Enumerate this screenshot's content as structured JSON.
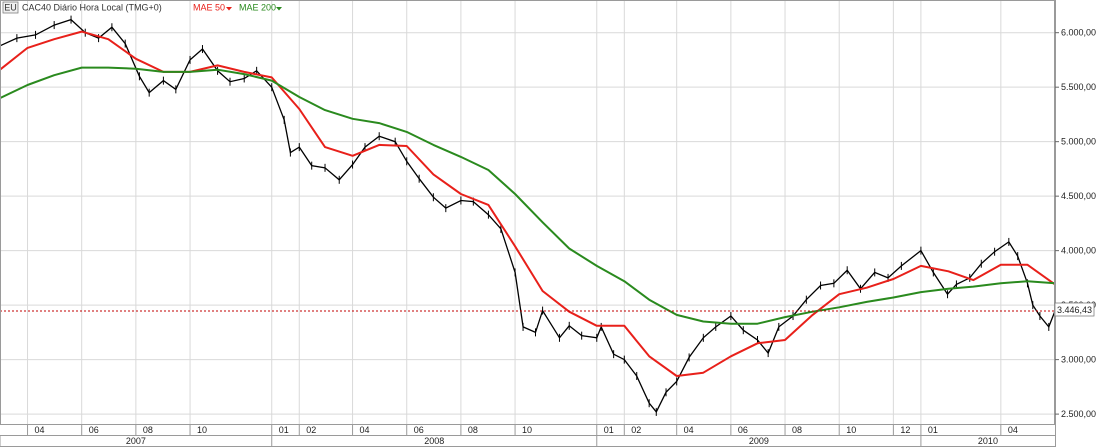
{
  "header": {
    "symbol_badge": "EU",
    "title": "CAC40 Diário Hora Local (TMG+0)",
    "indicators": [
      {
        "label": "MAE 50",
        "color": "#e00000"
      },
      {
        "label": "MAE 200",
        "color": "#2a8a1e"
      }
    ]
  },
  "price_badge": "3.446,43",
  "colors": {
    "price": "#000000",
    "mae50": "#e8201a",
    "mae200": "#2a8a1e",
    "grid": "#d9d9d9",
    "last_price_line": "#c00000",
    "badge_border": "#808080"
  },
  "chart_data": {
    "type": "line",
    "title": "CAC40 Diário Hora Local (TMG+0)",
    "ylim": [
      2400,
      6300
    ],
    "y_ticks": [
      2500,
      3000,
      3500,
      4000,
      4500,
      5000,
      5500,
      6000
    ],
    "y_tick_labels": [
      "2.500,00",
      "3.000,00",
      "3.500,00",
      "4.000,00",
      "4.500,00",
      "5.000,00",
      "5.500,00",
      "6.000,00"
    ],
    "xlim": [
      "2007-03-01",
      "2010-06-01"
    ],
    "x_ticks": [
      {
        "date": "2007-04-01",
        "label": "04"
      },
      {
        "date": "2007-06-01",
        "label": "06"
      },
      {
        "date": "2007-08-01",
        "label": "08"
      },
      {
        "date": "2007-10-01",
        "label": "10"
      },
      {
        "date": "2008-01-01",
        "label": "01"
      },
      {
        "date": "2008-02-01",
        "label": "02"
      },
      {
        "date": "2008-04-01",
        "label": "04"
      },
      {
        "date": "2008-06-01",
        "label": "06"
      },
      {
        "date": "2008-08-01",
        "label": "08"
      },
      {
        "date": "2008-10-01",
        "label": "10"
      },
      {
        "date": "2009-01-01",
        "label": "01"
      },
      {
        "date": "2009-02-01",
        "label": "02"
      },
      {
        "date": "2009-04-01",
        "label": "04"
      },
      {
        "date": "2009-06-01",
        "label": "06"
      },
      {
        "date": "2009-08-01",
        "label": "08"
      },
      {
        "date": "2009-10-01",
        "label": "10"
      },
      {
        "date": "2009-12-01",
        "label": "12"
      },
      {
        "date": "2010-01-01",
        "label": "01"
      },
      {
        "date": "2010-04-01",
        "label": "04"
      }
    ],
    "years": [
      {
        "label": "2007",
        "start": "2007-03-01",
        "end": "2008-01-01"
      },
      {
        "label": "2008",
        "start": "2008-01-01",
        "end": "2009-01-01"
      },
      {
        "label": "2009",
        "start": "2009-01-01",
        "end": "2010-01-01"
      },
      {
        "label": "2010",
        "start": "2010-01-01",
        "end": "2010-06-01"
      }
    ],
    "last_price": 3446.43,
    "series": [
      {
        "name": "CAC40",
        "style": "price",
        "x": [
          "2007-03-01",
          "2007-03-20",
          "2007-04-10",
          "2007-05-01",
          "2007-05-20",
          "2007-06-05",
          "2007-06-20",
          "2007-07-05",
          "2007-07-20",
          "2007-08-05",
          "2007-08-16",
          "2007-09-01",
          "2007-09-15",
          "2007-10-01",
          "2007-10-15",
          "2007-11-01",
          "2007-11-15",
          "2007-12-01",
          "2007-12-15",
          "2008-01-01",
          "2008-01-15",
          "2008-01-22",
          "2008-02-01",
          "2008-02-15",
          "2008-03-01",
          "2008-03-17",
          "2008-04-01",
          "2008-04-15",
          "2008-05-01",
          "2008-05-19",
          "2008-06-01",
          "2008-06-15",
          "2008-07-01",
          "2008-07-15",
          "2008-08-01",
          "2008-08-15",
          "2008-09-01",
          "2008-09-15",
          "2008-10-01",
          "2008-10-10",
          "2008-10-24",
          "2008-11-01",
          "2008-11-20",
          "2008-12-01",
          "2008-12-15",
          "2009-01-01",
          "2009-01-06",
          "2009-01-20",
          "2009-02-01",
          "2009-02-15",
          "2009-03-01",
          "2009-03-09",
          "2009-03-20",
          "2009-04-01",
          "2009-04-15",
          "2009-05-01",
          "2009-05-15",
          "2009-06-01",
          "2009-06-15",
          "2009-07-01",
          "2009-07-13",
          "2009-07-25",
          "2009-08-10",
          "2009-08-25",
          "2009-09-10",
          "2009-09-25",
          "2009-10-10",
          "2009-10-25",
          "2009-11-10",
          "2009-11-25",
          "2009-12-10",
          "2010-01-01",
          "2010-01-15",
          "2010-01-31",
          "2010-02-10",
          "2010-02-25",
          "2010-03-10",
          "2010-03-25",
          "2010-04-10",
          "2010-04-20",
          "2010-05-01",
          "2010-05-07",
          "2010-05-15",
          "2010-05-25",
          "2010-06-01"
        ],
        "values": [
          5880,
          5950,
          5980,
          6070,
          6120,
          6000,
          5950,
          6050,
          5900,
          5600,
          5450,
          5560,
          5480,
          5750,
          5850,
          5650,
          5550,
          5580,
          5650,
          5500,
          5200,
          4900,
          4950,
          4780,
          4760,
          4650,
          4790,
          4950,
          5050,
          5000,
          4820,
          4660,
          4490,
          4390,
          4460,
          4450,
          4330,
          4200,
          3800,
          3300,
          3250,
          3450,
          3200,
          3310,
          3220,
          3200,
          3300,
          3050,
          3000,
          2850,
          2600,
          2520,
          2700,
          2800,
          3020,
          3200,
          3300,
          3400,
          3270,
          3180,
          3060,
          3300,
          3400,
          3550,
          3680,
          3700,
          3820,
          3650,
          3800,
          3750,
          3860,
          4000,
          3800,
          3600,
          3690,
          3750,
          3880,
          3990,
          4080,
          3950,
          3700,
          3500,
          3400,
          3300,
          3446
        ]
      },
      {
        "name": "MAE 50",
        "style": "mae50",
        "x": [
          "2007-03-01",
          "2007-04-01",
          "2007-05-01",
          "2007-06-01",
          "2007-07-01",
          "2007-08-01",
          "2007-09-01",
          "2007-10-01",
          "2007-11-01",
          "2007-12-01",
          "2008-01-01",
          "2008-02-01",
          "2008-03-01",
          "2008-04-01",
          "2008-05-01",
          "2008-06-01",
          "2008-07-01",
          "2008-08-01",
          "2008-09-01",
          "2008-10-01",
          "2008-11-01",
          "2008-12-01",
          "2009-01-01",
          "2009-02-01",
          "2009-03-01",
          "2009-04-01",
          "2009-05-01",
          "2009-06-01",
          "2009-07-01",
          "2009-08-01",
          "2009-09-01",
          "2009-10-01",
          "2009-11-01",
          "2009-12-01",
          "2010-01-01",
          "2010-02-01",
          "2010-03-01",
          "2010-04-01",
          "2010-05-01",
          "2010-06-01"
        ],
        "values": [
          5660,
          5860,
          5940,
          6010,
          5940,
          5760,
          5640,
          5640,
          5700,
          5640,
          5590,
          5300,
          4950,
          4870,
          4970,
          4960,
          4700,
          4520,
          4420,
          4040,
          3630,
          3440,
          3310,
          3310,
          3030,
          2850,
          2880,
          3030,
          3150,
          3180,
          3410,
          3600,
          3660,
          3740,
          3860,
          3810,
          3730,
          3870,
          3870,
          3690
        ]
      },
      {
        "name": "MAE 200",
        "style": "mae200",
        "x": [
          "2007-03-01",
          "2007-04-01",
          "2007-05-01",
          "2007-06-01",
          "2007-07-01",
          "2007-08-01",
          "2007-09-01",
          "2007-10-01",
          "2007-11-01",
          "2007-12-01",
          "2008-01-01",
          "2008-02-01",
          "2008-03-01",
          "2008-04-01",
          "2008-05-01",
          "2008-06-01",
          "2008-07-01",
          "2008-08-01",
          "2008-09-01",
          "2008-10-01",
          "2008-11-01",
          "2008-12-01",
          "2009-01-01",
          "2009-02-01",
          "2009-03-01",
          "2009-04-01",
          "2009-05-01",
          "2009-06-01",
          "2009-07-01",
          "2009-08-01",
          "2009-09-01",
          "2009-10-01",
          "2009-11-01",
          "2009-12-01",
          "2010-01-01",
          "2010-02-01",
          "2010-03-01",
          "2010-04-01",
          "2010-05-01",
          "2010-06-01"
        ],
        "values": [
          5400,
          5520,
          5610,
          5680,
          5680,
          5670,
          5640,
          5640,
          5660,
          5620,
          5560,
          5410,
          5290,
          5210,
          5170,
          5090,
          4970,
          4860,
          4740,
          4520,
          4260,
          4020,
          3860,
          3720,
          3550,
          3410,
          3350,
          3330,
          3330,
          3390,
          3440,
          3480,
          3530,
          3570,
          3620,
          3650,
          3670,
          3700,
          3720,
          3700
        ]
      }
    ]
  }
}
